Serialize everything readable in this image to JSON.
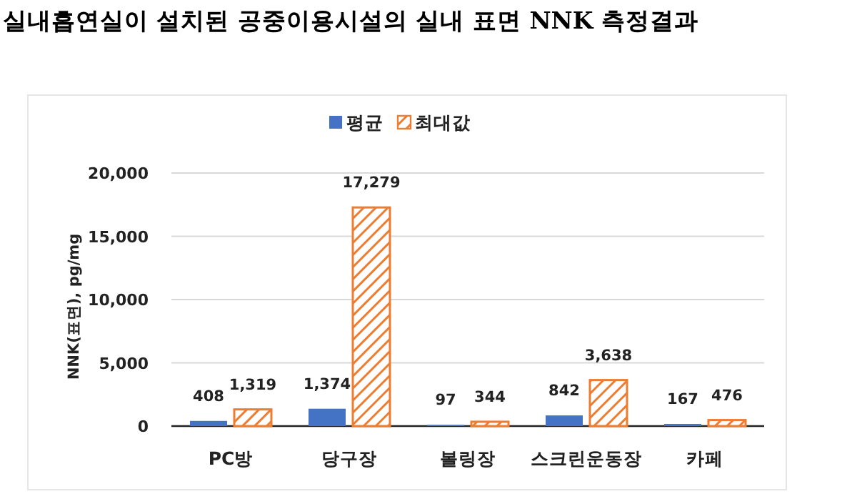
{
  "chart_data": {
    "type": "bar",
    "title": "실내흡연실이 설치된 공중이용시설의 실내 표면 NNK 측정결과",
    "ylabel": "NNK(표면), pg/mg",
    "categories": [
      "PC방",
      "당구장",
      "볼링장",
      "스크린운동장",
      "카페"
    ],
    "series": [
      {
        "name": "평균",
        "color": "#4472c4",
        "values": [
          408,
          1374,
          97,
          842,
          167
        ],
        "value_labels": [
          "408",
          "1,374",
          "97",
          "842",
          "167"
        ]
      },
      {
        "name": "최대값",
        "color": "#ed7d31",
        "values": [
          1319,
          17279,
          344,
          3638,
          476
        ],
        "value_labels": [
          "1,319",
          "17,279",
          "344",
          "3,638",
          "476"
        ]
      }
    ],
    "ylim": [
      0,
      20000
    ],
    "yticks": [
      0,
      {
        "value": 5000,
        "label": "5,000"
      },
      {
        "value": 10000,
        "label": "10,000"
      },
      {
        "value": 15000,
        "label": "15,000"
      },
      {
        "value": 20000,
        "label": "20,000"
      }
    ],
    "grid": "y",
    "legend": "top"
  }
}
